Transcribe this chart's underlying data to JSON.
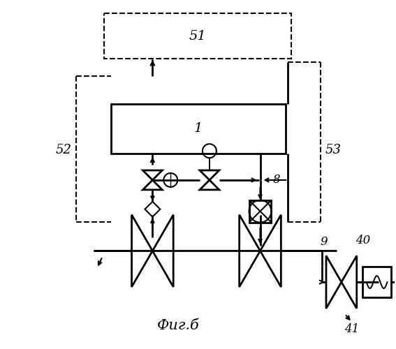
{
  "title": "Фиг.б",
  "bg_color": "#ffffff",
  "line_color": "#000000",
  "lw": 1.5,
  "lw_thick": 2.0
}
